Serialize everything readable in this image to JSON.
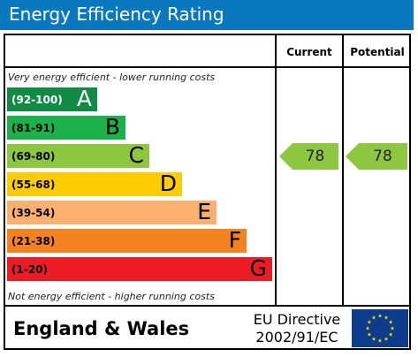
{
  "title": "Energy Efficiency Rating",
  "columns": {
    "current": "Current",
    "potential": "Potential"
  },
  "top_note": "Very energy efficient - lower running costs",
  "bottom_note": "Not energy efficient - higher running costs",
  "chart_data": {
    "type": "bar",
    "title": "Energy Efficiency Rating",
    "bands": [
      {
        "range": "(92-100)",
        "letter": "A",
        "color": "#118a43",
        "text_color": "#ffffff"
      },
      {
        "range": "(81-91)",
        "letter": "B",
        "color": "#1cb14b",
        "text_color": "#000000"
      },
      {
        "range": "(69-80)",
        "letter": "C",
        "color": "#8dc63f",
        "text_color": "#000000"
      },
      {
        "range": "(55-68)",
        "letter": "D",
        "color": "#ffcc00",
        "text_color": "#000000"
      },
      {
        "range": "(39-54)",
        "letter": "E",
        "color": "#fbb070",
        "text_color": "#000000"
      },
      {
        "range": "(21-38)",
        "letter": "F",
        "color": "#f58220",
        "text_color": "#000000"
      },
      {
        "range": "(1-20)",
        "letter": "G",
        "color": "#ed1c24",
        "text_color": "#000000"
      }
    ],
    "current": {
      "value": 78,
      "band": "C",
      "color": "#8dc63f"
    },
    "potential": {
      "value": 78,
      "band": "C",
      "color": "#8dc63f"
    }
  },
  "footer": {
    "region": "England & Wales",
    "directive_line1": "EU Directive",
    "directive_line2": "2002/91/EC",
    "flag_icon": "eu-flag-icon"
  }
}
